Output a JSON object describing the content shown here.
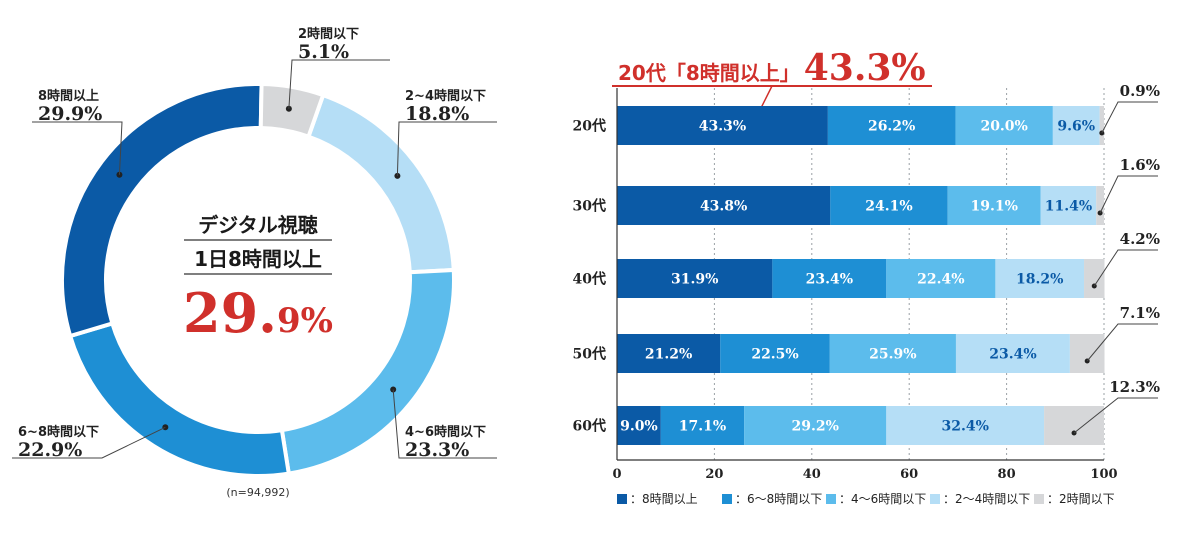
{
  "colors": {
    "c8": "#0b5aa6",
    "c6": "#1e8fd4",
    "c4": "#5cbcec",
    "c2": "#b5def6",
    "cu": "#d6d7d9",
    "red": "#d0302b"
  },
  "donut": {
    "center_line1": "デジタル視聴",
    "center_line2": "1日8時間以上",
    "center_value_main": "29.",
    "center_value_small": "9%",
    "note": "(n=94,992)"
  },
  "bars": {
    "headline_prefix": "20代「8時間以上」",
    "headline_value": "43.3%"
  },
  "chart_data": [
    {
      "type": "pie",
      "title": "デジタル視聴 1日8時間以上 29.9%",
      "categories": [
        "8時間以上",
        "6~8時間以下",
        "4~6時間以下",
        "2~4時間以下",
        "2時間以下"
      ],
      "values": [
        29.9,
        22.9,
        23.3,
        18.8,
        5.1
      ],
      "labels": [
        "29.9%",
        "22.9%",
        "23.3%",
        "18.8%",
        "5.1%"
      ],
      "note": "(n=94,992)"
    },
    {
      "type": "bar",
      "orientation": "horizontal",
      "stacked": true,
      "title": "20代「8時間以上」43.3%",
      "categories": [
        "20代",
        "30代",
        "40代",
        "50代",
        "60代"
      ],
      "series": [
        {
          "name": "：8時間以上",
          "values": [
            43.3,
            43.8,
            31.9,
            21.2,
            9.0
          ],
          "labels": [
            "43.3%",
            "43.8%",
            "31.9%",
            "21.2%",
            "9.0%"
          ]
        },
        {
          "name": "：6～8時間以下",
          "values": [
            26.2,
            24.1,
            23.4,
            22.5,
            17.1
          ],
          "labels": [
            "26.2%",
            "24.1%",
            "23.4%",
            "22.5%",
            "17.1%"
          ]
        },
        {
          "name": "：4～6時間以下",
          "values": [
            20.0,
            19.1,
            22.4,
            25.9,
            29.2
          ],
          "labels": [
            "20.0%",
            "19.1%",
            "22.4%",
            "25.9%",
            "29.2%"
          ]
        },
        {
          "name": "：2～4時間以下",
          "values": [
            9.6,
            11.4,
            18.2,
            23.4,
            32.4
          ],
          "labels": [
            "9.6%",
            "11.4%",
            "18.2%",
            "23.4%",
            "32.4%"
          ]
        },
        {
          "name": "：2時間以下",
          "values": [
            0.9,
            1.6,
            4.2,
            7.1,
            12.3
          ],
          "labels": [
            "0.9%",
            "1.6%",
            "4.2%",
            "7.1%",
            "12.3%"
          ]
        }
      ],
      "xlim": [
        0,
        100
      ],
      "xticks": [
        "0",
        "20",
        "40",
        "60",
        "80",
        "100"
      ],
      "legend": "bottom",
      "grid": "dotted vertical"
    }
  ]
}
